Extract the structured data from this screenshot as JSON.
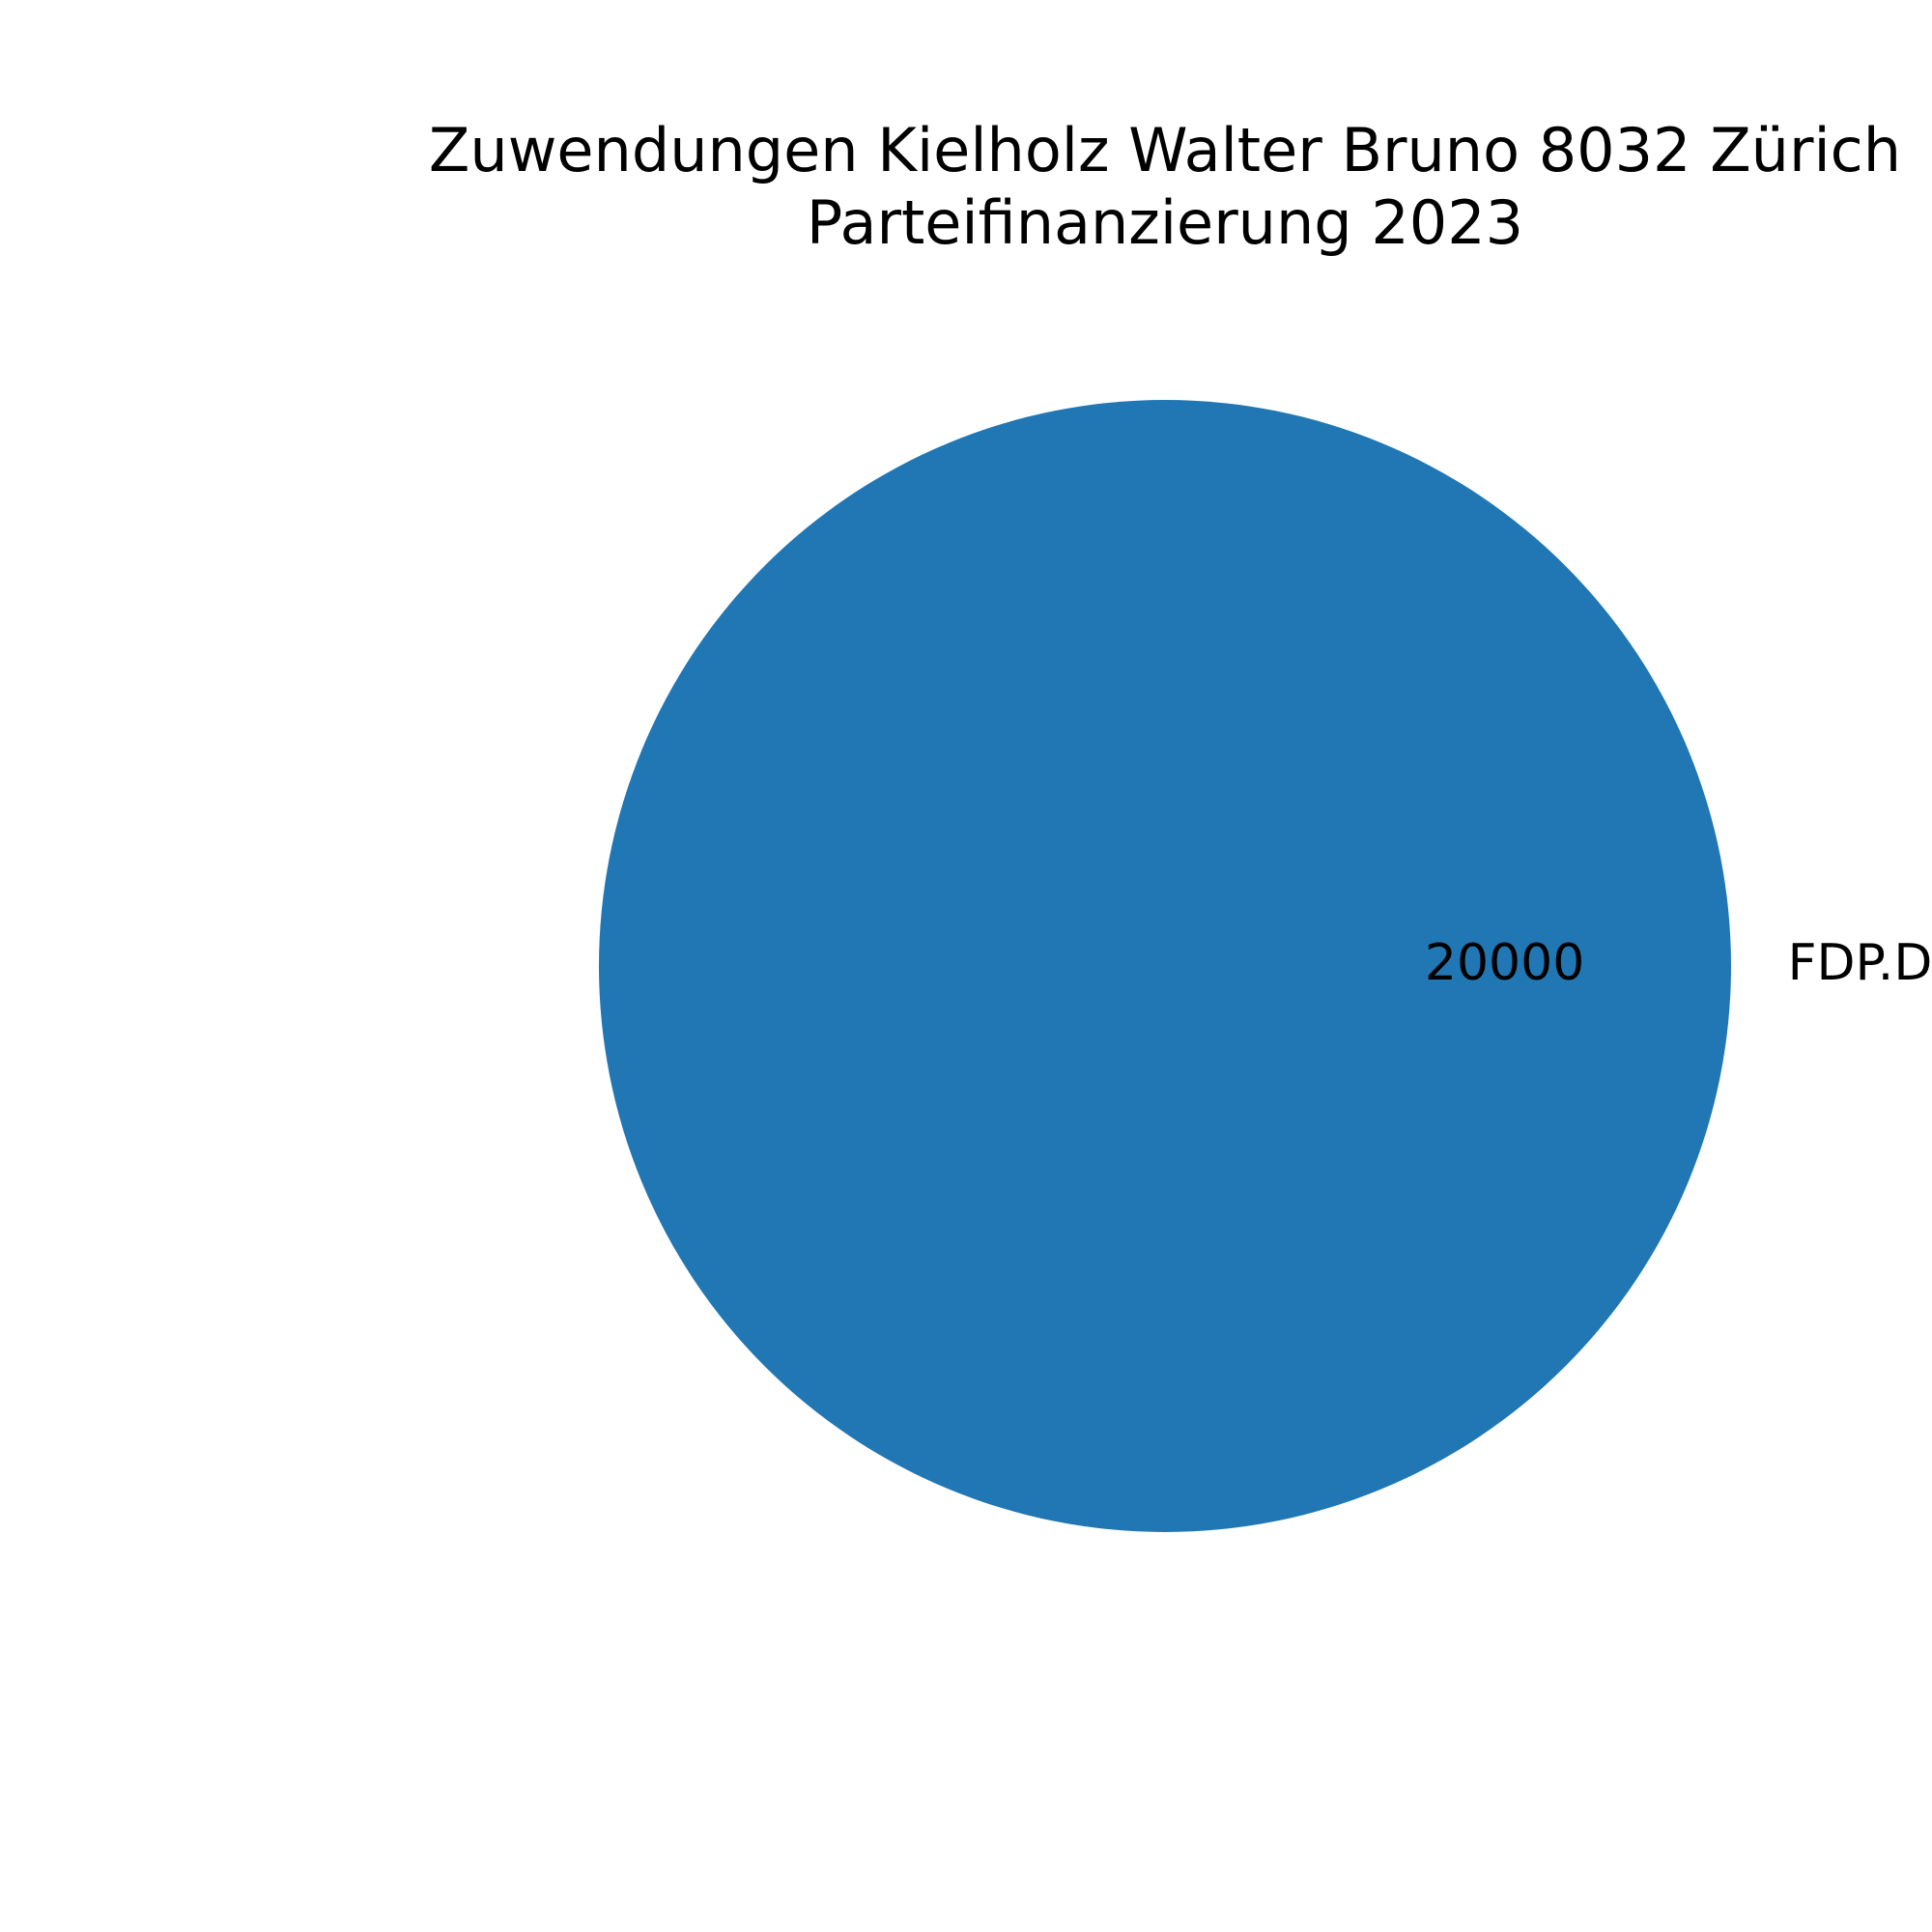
{
  "chart_data": {
    "type": "pie",
    "title_lines": [
      "Zuwendungen Kielholz Walter Bruno 8032 Zürich",
      "Parteifinanzierung 2023"
    ],
    "slices": [
      {
        "label": "FDP.Die Liberalen",
        "value": 20000,
        "value_label": "20000",
        "color": "#2077b4"
      }
    ]
  }
}
